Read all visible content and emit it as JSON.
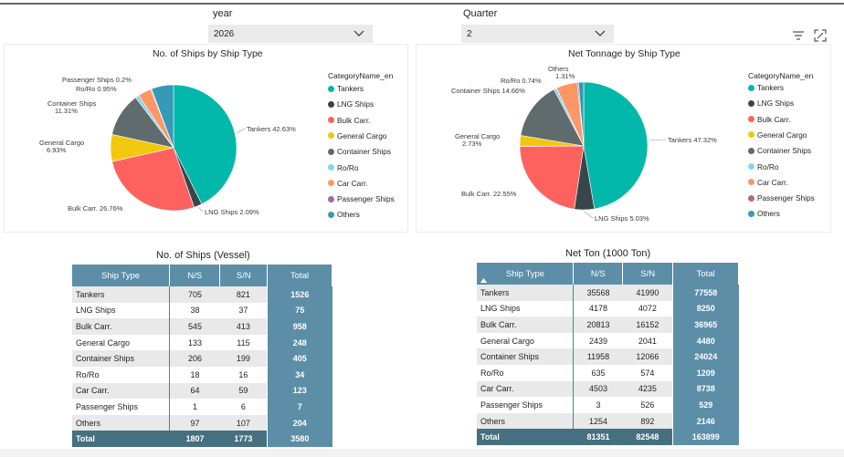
{
  "filters": {
    "year": {
      "label": "year",
      "value": "2026"
    },
    "quarter": {
      "label": "Quarter",
      "value": "2"
    }
  },
  "colors": {
    "tankers": "#01b8aa",
    "lng": "#374649",
    "bulk": "#fd625e",
    "general": "#f2c80f",
    "container": "#5f6b6d",
    "roro": "#8ad4eb",
    "car": "#fe9666",
    "passenger": "#a66999",
    "others": "#3599b8",
    "table_header": "#5c8ea7",
    "table_total": "#45707f"
  },
  "legend": {
    "title": "CategoryName_en",
    "items": [
      {
        "label": "Tankers",
        "color": "#01b8aa"
      },
      {
        "label": "LNG Ships",
        "color": "#374649"
      },
      {
        "label": "Bulk Carr.",
        "color": "#fd625e"
      },
      {
        "label": "General Cargo",
        "color": "#f2c80f"
      },
      {
        "label": "Container Ships",
        "color": "#5f6b6d"
      },
      {
        "label": "Ro/Ro",
        "color": "#8ad4eb"
      },
      {
        "label": "Car Carr.",
        "color": "#fe9666"
      },
      {
        "label": "Passenger Ships",
        "color": "#a66999"
      },
      {
        "label": "Others",
        "color": "#3599b8"
      }
    ]
  },
  "chart_data": [
    {
      "type": "pie",
      "title": "No. of Ships by Ship Type",
      "slices": [
        {
          "name": "Tankers",
          "value": 1526,
          "label": "Tankers 42.63%"
        },
        {
          "name": "LNG Ships",
          "value": 75,
          "label": "LNG Ships 2.09%"
        },
        {
          "name": "Bulk Carr.",
          "value": 958,
          "label": "Bulk Carr. 26.76%"
        },
        {
          "name": "General Cargo",
          "value": 248,
          "label": "General Cargo 6.93%"
        },
        {
          "name": "Container Ships",
          "value": 405,
          "label": "Container Ships 11.31%"
        },
        {
          "name": "Ro/Ro",
          "value": 34,
          "label": "Ro/Ro 0.95%"
        },
        {
          "name": "Car Carr.",
          "value": 123,
          "label": ""
        },
        {
          "name": "Passenger Ships",
          "value": 7,
          "label": "Passenger Ships 0.2%"
        },
        {
          "name": "Others",
          "value": 204,
          "label": ""
        }
      ]
    },
    {
      "type": "pie",
      "title": "Net Tonnage by Ship Type",
      "slices": [
        {
          "name": "Tankers",
          "value": 77558,
          "label": "Tankers 47.32%"
        },
        {
          "name": "LNG Ships",
          "value": 8250,
          "label": "LNG Ships 5.03%"
        },
        {
          "name": "Bulk Carr.",
          "value": 36965,
          "label": "Bulk Carr. 22.55%"
        },
        {
          "name": "General Cargo",
          "value": 4480,
          "label": "General Cargo 2.73%"
        },
        {
          "name": "Container Ships",
          "value": 24024,
          "label": "Container Ships 14.66%"
        },
        {
          "name": "Ro/Ro",
          "value": 1209,
          "label": "Ro/Ro 0.74%"
        },
        {
          "name": "Car Carr.",
          "value": 8738,
          "label": ""
        },
        {
          "name": "Passenger Ships",
          "value": 529,
          "label": ""
        },
        {
          "name": "Others",
          "value": 2146,
          "label": "Others 1.31%"
        }
      ]
    }
  ],
  "table_ships": {
    "title": "No. of Ships (Vessel)",
    "columns": [
      "Ship Type",
      "N/S",
      "S/N",
      "Total"
    ],
    "rows": [
      [
        "Tankers",
        "705",
        "821",
        "1526"
      ],
      [
        "LNG Ships",
        "38",
        "37",
        "75"
      ],
      [
        "Bulk Carr.",
        "545",
        "413",
        "958"
      ],
      [
        "General Cargo",
        "133",
        "115",
        "248"
      ],
      [
        "Container Ships",
        "206",
        "199",
        "405"
      ],
      [
        "Ro/Ro",
        "18",
        "16",
        "34"
      ],
      [
        "Car Carr.",
        "64",
        "59",
        "123"
      ],
      [
        "Passenger Ships",
        "1",
        "6",
        "7"
      ],
      [
        "Others",
        "97",
        "107",
        "204"
      ]
    ],
    "total": [
      "Total",
      "1807",
      "1773",
      "3580"
    ]
  },
  "table_ton": {
    "title": "Net Ton (1000 Ton)",
    "columns": [
      "Ship Type",
      "N/S",
      "S/N",
      "Total"
    ],
    "rows": [
      [
        "Tankers",
        "35568",
        "41990",
        "77558"
      ],
      [
        "LNG Ships",
        "4178",
        "4072",
        "8250"
      ],
      [
        "Bulk Carr.",
        "20813",
        "16152",
        "36965"
      ],
      [
        "General Cargo",
        "2439",
        "2041",
        "4480"
      ],
      [
        "Container Ships",
        "11958",
        "12066",
        "24024"
      ],
      [
        "Ro/Ro",
        "635",
        "574",
        "1209"
      ],
      [
        "Car Carr.",
        "4503",
        "4235",
        "8738"
      ],
      [
        "Passenger Ships",
        "3",
        "526",
        "529"
      ],
      [
        "Others",
        "1254",
        "892",
        "2146"
      ]
    ],
    "total": [
      "Total",
      "81351",
      "82548",
      "163899"
    ]
  }
}
